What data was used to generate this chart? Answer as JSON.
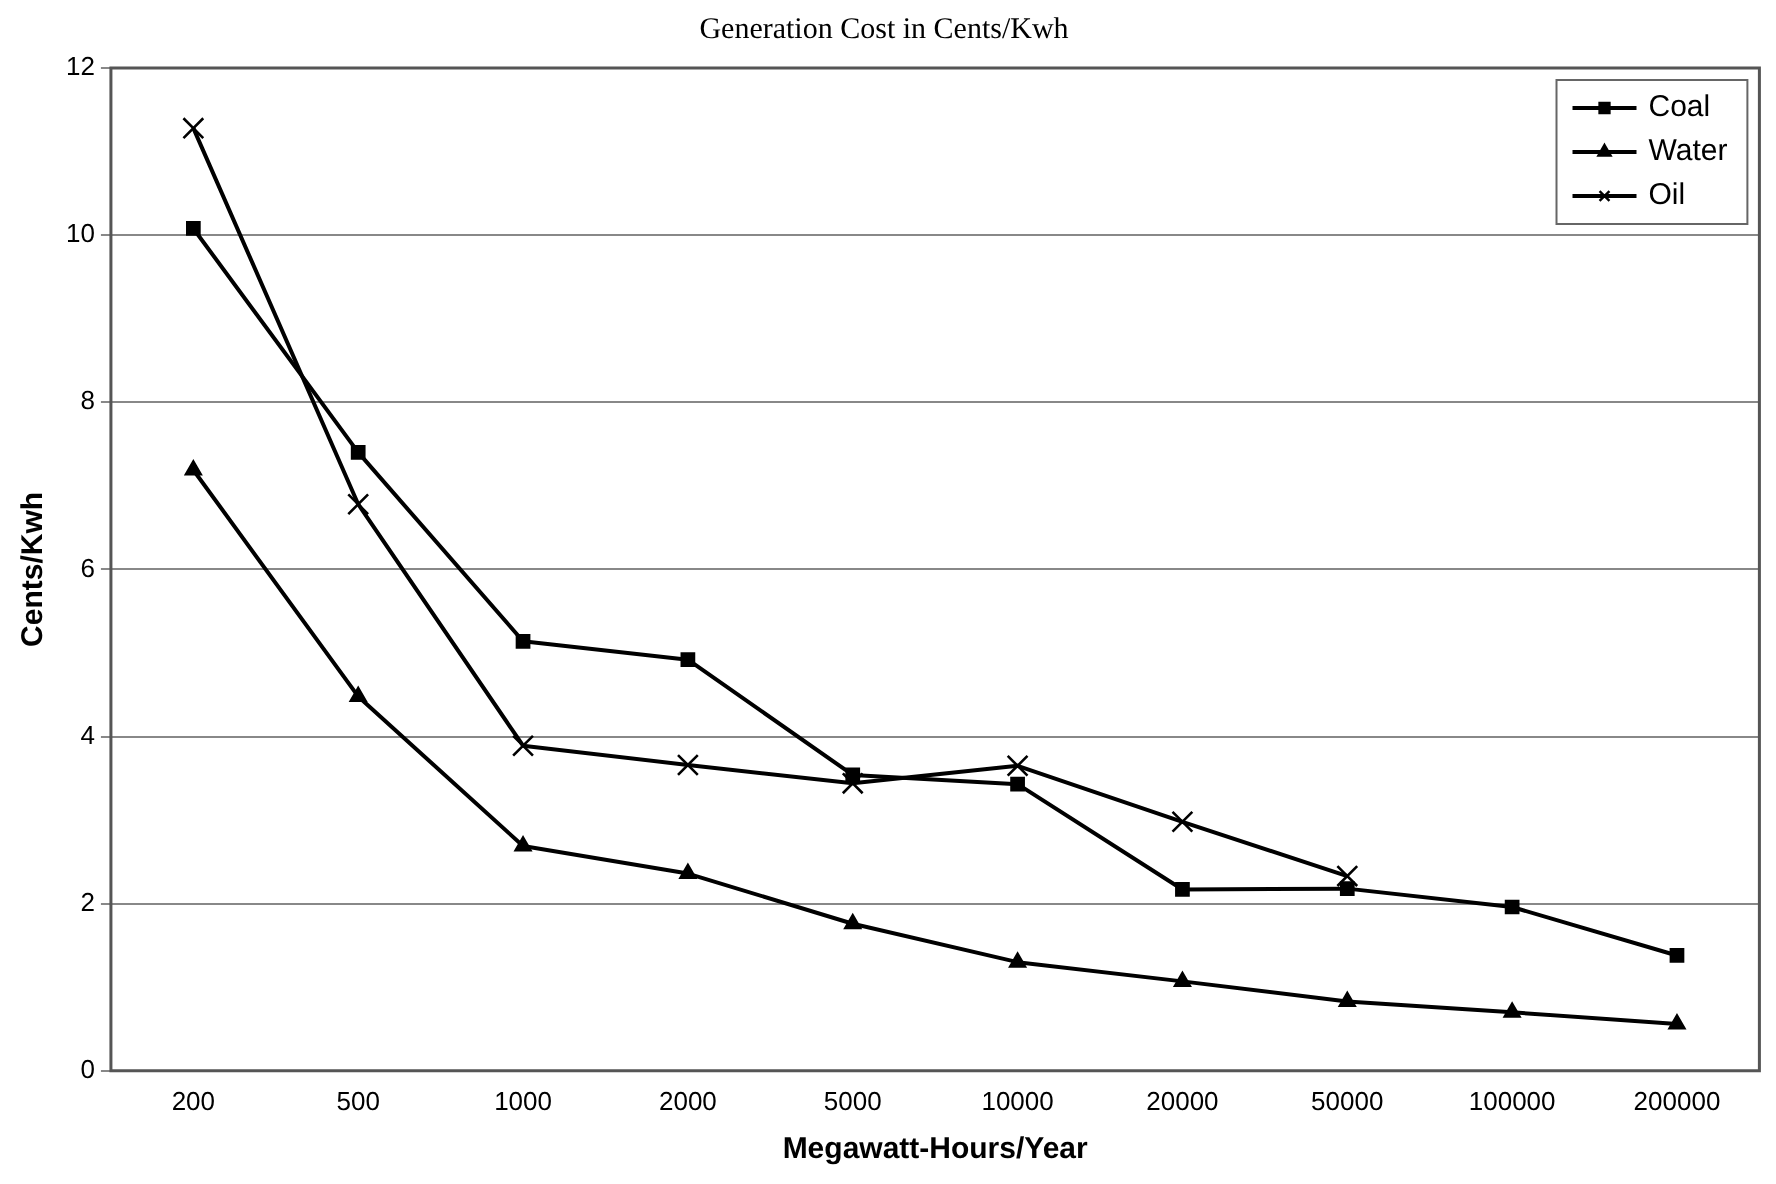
{
  "chart_data": {
    "type": "line",
    "title": "Generation Cost in Cents/Kwh",
    "xlabel": "Megawatt-Hours/Year",
    "ylabel": "Cents/Kwh",
    "categories": [
      "200",
      "500",
      "1000",
      "2000",
      "5000",
      "10000",
      "20000",
      "50000",
      "100000",
      "200000"
    ],
    "series": [
      {
        "name": "Coal",
        "color": "#000000",
        "marker": "square",
        "values": [
          10.08,
          7.4,
          5.14,
          4.92,
          3.54,
          3.43,
          2.17,
          2.18,
          1.96,
          1.38
        ]
      },
      {
        "name": "Water",
        "color": "#000000",
        "marker": "triangle",
        "values": [
          7.19,
          4.48,
          2.69,
          2.36,
          1.76,
          1.3,
          1.07,
          0.83,
          0.7,
          0.56
        ]
      },
      {
        "name": "Oil",
        "color": "#000000",
        "marker": "cross",
        "values": [
          11.28,
          6.78,
          3.89,
          3.66,
          3.44,
          3.65,
          2.98,
          2.33,
          null,
          null
        ]
      }
    ],
    "ylim": [
      0,
      12
    ],
    "yticks": [
      0,
      2,
      4,
      6,
      8,
      10,
      12
    ],
    "grid": "y",
    "legend": "top right",
    "line_style": "solid"
  }
}
